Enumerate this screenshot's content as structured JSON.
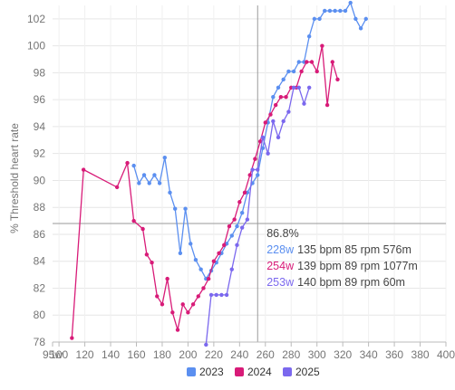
{
  "chart_data": {
    "type": "line",
    "title": "",
    "xlabel": "",
    "ylabel": "% Threshold heart rate",
    "xlim": [
      95,
      400
    ],
    "ylim": [
      78,
      103
    ],
    "x_ticks": [
      {
        "value": 95,
        "label": "95w"
      },
      {
        "value": 100,
        "label": "100"
      },
      {
        "value": 120,
        "label": "120"
      },
      {
        "value": 140,
        "label": "140"
      },
      {
        "value": 160,
        "label": "160"
      },
      {
        "value": 180,
        "label": "180"
      },
      {
        "value": 200,
        "label": "200"
      },
      {
        "value": 220,
        "label": "220"
      },
      {
        "value": 240,
        "label": "240"
      },
      {
        "value": 260,
        "label": "260"
      },
      {
        "value": 280,
        "label": "280"
      },
      {
        "value": 300,
        "label": "300"
      },
      {
        "value": 320,
        "label": "320"
      },
      {
        "value": 340,
        "label": "340"
      },
      {
        "value": 360,
        "label": "360"
      },
      {
        "value": 380,
        "label": "380"
      },
      {
        "value": 400,
        "label": "400"
      }
    ],
    "y_ticks": [
      {
        "value": 78,
        "label": "78"
      },
      {
        "value": 80,
        "label": "80"
      },
      {
        "value": 82,
        "label": "82"
      },
      {
        "value": 84,
        "label": "84"
      },
      {
        "value": 86,
        "label": "86"
      },
      {
        "value": 88,
        "label": "88"
      },
      {
        "value": 90,
        "label": "90"
      },
      {
        "value": 92,
        "label": "92"
      },
      {
        "value": 94,
        "label": "94"
      },
      {
        "value": 96,
        "label": "96"
      },
      {
        "value": 98,
        "label": "98"
      },
      {
        "value": 100,
        "label": "100"
      },
      {
        "value": 102,
        "label": "102"
      }
    ],
    "grid": true,
    "legend_position": "bottom",
    "crosshair": {
      "x": 254,
      "y": 86.8
    },
    "series": [
      {
        "name": "2023",
        "color": "#5b8ff0",
        "points": [
          [
            158,
            91.1
          ],
          [
            162,
            89.8
          ],
          [
            166,
            90.4
          ],
          [
            170,
            89.8
          ],
          [
            174,
            90.4
          ],
          [
            178,
            89.8
          ],
          [
            182,
            91.7
          ],
          [
            186,
            89.1
          ],
          [
            190,
            87.9
          ],
          [
            194,
            84.6
          ],
          [
            198,
            87.9
          ],
          [
            202,
            85.3
          ],
          [
            206,
            84.1
          ],
          [
            210,
            83.4
          ],
          [
            214,
            82.7
          ],
          [
            218,
            83.3
          ],
          [
            222,
            83.9
          ],
          [
            226,
            84.6
          ],
          [
            230,
            85.3
          ],
          [
            234,
            85.9
          ],
          [
            238,
            86.6
          ],
          [
            242,
            87.6
          ],
          [
            246,
            89.1
          ],
          [
            250,
            89.8
          ],
          [
            254,
            90.4
          ],
          [
            258,
            92.4
          ],
          [
            262,
            94.3
          ],
          [
            266,
            96.2
          ],
          [
            270,
            96.9
          ],
          [
            274,
            97.5
          ],
          [
            278,
            98.1
          ],
          [
            282,
            98.1
          ],
          [
            286,
            98.8
          ],
          [
            290,
            98.8
          ],
          [
            294,
            100.7
          ],
          [
            298,
            102.0
          ],
          [
            302,
            102.0
          ],
          [
            306,
            102.6
          ],
          [
            310,
            102.6
          ],
          [
            314,
            102.6
          ],
          [
            318,
            102.6
          ],
          [
            322,
            102.6
          ],
          [
            326,
            103.2
          ],
          [
            330,
            102.0
          ],
          [
            334,
            101.3
          ],
          [
            338,
            102.0
          ]
        ]
      },
      {
        "name": "2024",
        "color": "#d81b78",
        "points": [
          [
            110,
            78.3
          ],
          [
            119,
            90.8
          ],
          [
            145,
            89.5
          ],
          [
            153,
            91.3
          ],
          [
            158,
            87.0
          ],
          [
            165,
            86.4
          ],
          [
            168,
            84.5
          ],
          [
            172,
            83.9
          ],
          [
            176,
            81.4
          ],
          [
            180,
            80.8
          ],
          [
            184,
            82.7
          ],
          [
            188,
            80.2
          ],
          [
            192,
            78.9
          ],
          [
            196,
            80.8
          ],
          [
            200,
            80.2
          ],
          [
            204,
            80.8
          ],
          [
            208,
            81.4
          ],
          [
            212,
            82.0
          ],
          [
            216,
            82.7
          ],
          [
            220,
            84.0
          ],
          [
            224,
            84.6
          ],
          [
            228,
            85.2
          ],
          [
            232,
            86.6
          ],
          [
            236,
            87.1
          ],
          [
            240,
            88.4
          ],
          [
            244,
            89.1
          ],
          [
            248,
            90.4
          ],
          [
            252,
            91.6
          ],
          [
            256,
            92.9
          ],
          [
            260,
            94.3
          ],
          [
            264,
            94.9
          ],
          [
            268,
            95.6
          ],
          [
            272,
            96.2
          ],
          [
            276,
            96.2
          ],
          [
            280,
            96.9
          ],
          [
            284,
            96.9
          ],
          [
            288,
            98.1
          ],
          [
            292,
            98.8
          ],
          [
            296,
            98.8
          ],
          [
            300,
            98.1
          ],
          [
            304,
            100.0
          ],
          [
            308,
            95.6
          ],
          [
            312,
            98.8
          ],
          [
            316,
            97.5
          ]
        ]
      },
      {
        "name": "2025",
        "color": "#7b68ee",
        "points": [
          [
            214,
            77.8
          ],
          [
            218,
            81.5
          ],
          [
            222,
            81.5
          ],
          [
            226,
            81.5
          ],
          [
            230,
            81.5
          ],
          [
            234,
            83.4
          ],
          [
            238,
            85.2
          ],
          [
            242,
            86.5
          ],
          [
            246,
            87.1
          ],
          [
            250,
            90.8
          ],
          [
            254,
            90.8
          ],
          [
            258,
            93.2
          ],
          [
            262,
            92.0
          ],
          [
            266,
            94.4
          ],
          [
            270,
            93.2
          ],
          [
            274,
            94.4
          ],
          [
            278,
            95.1
          ],
          [
            282,
            96.9
          ],
          [
            286,
            96.9
          ],
          [
            290,
            95.7
          ],
          [
            294,
            96.9
          ]
        ]
      }
    ],
    "tooltip": {
      "header": "86.8%",
      "rows": [
        {
          "series": "2023",
          "week": "228w",
          "text": "135 bpm 85 rpm 576m"
        },
        {
          "series": "2024",
          "week": "254w",
          "text": "139 bpm 89 rpm 1077m"
        },
        {
          "series": "2025",
          "week": "253w",
          "text": "140 bpm 89 rpm 60m"
        }
      ]
    }
  }
}
